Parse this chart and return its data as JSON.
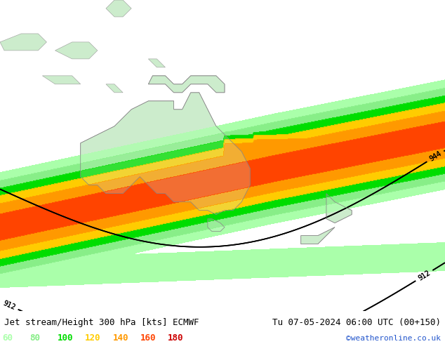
{
  "title_left": "Jet stream/Height 300 hPa [kts] ECMWF",
  "title_right": "Tu 07-05-2024 06:00 UTC (00+150)",
  "credit": "©weatheronline.co.uk",
  "legend_values": [
    60,
    80,
    100,
    120,
    140,
    160,
    180
  ],
  "legend_colors": [
    "#aaffaa",
    "#88ee88",
    "#00dd00",
    "#ffcc00",
    "#ff9900",
    "#ff4400",
    "#cc0000"
  ],
  "background_map_color": "#d8d8d8",
  "land_color": "#c8eec8",
  "title_fontsize": 9,
  "credit_color": "#2255cc",
  "credit_fontsize": 8,
  "lon_min": 95,
  "lon_max": 200,
  "lat_min": -62,
  "lat_max": 12
}
